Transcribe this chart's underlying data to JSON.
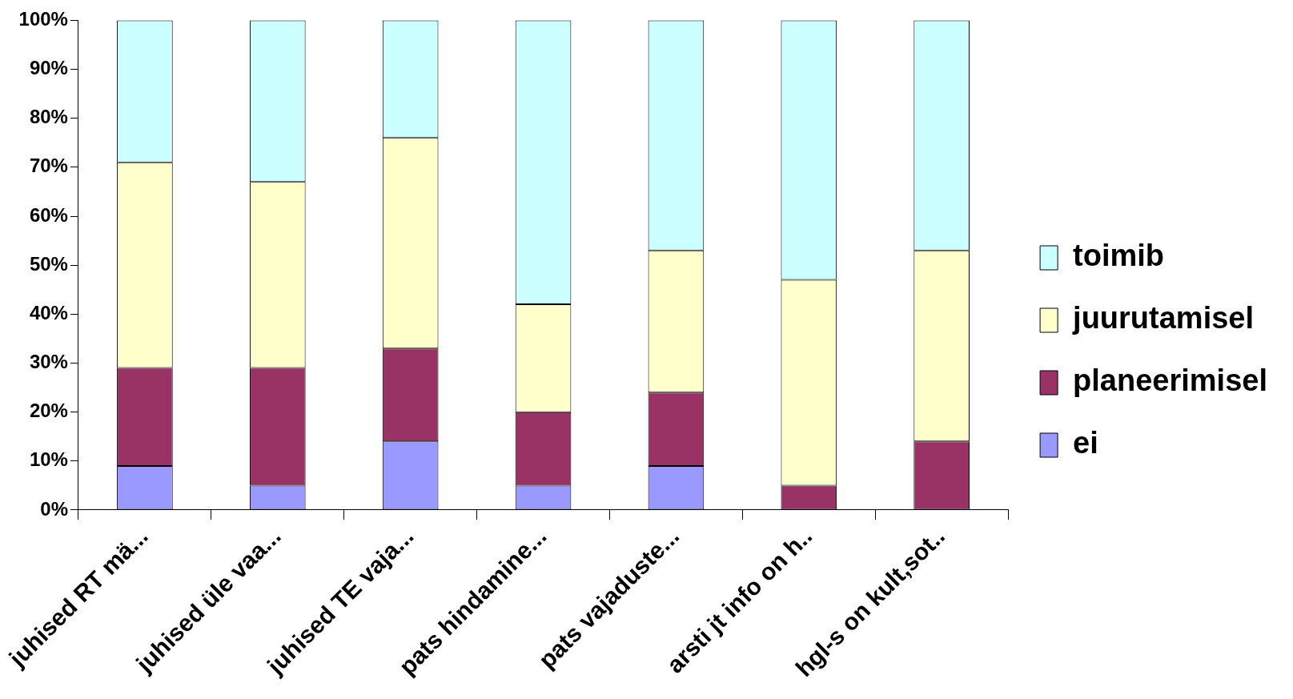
{
  "chart_data": {
    "type": "bar",
    "stacked": true,
    "categories": [
      "juhised RT mä...",
      "juhised üle vaa...",
      "juhised TE vaja...",
      "pats hindamine...",
      "pats vajaduste...",
      "arsti jt info on h..",
      "hgl-s on kult,sot.."
    ],
    "series": [
      {
        "name": "ei",
        "color": "#9999ff",
        "values": [
          9,
          5,
          14,
          5,
          9,
          0,
          0
        ]
      },
      {
        "name": "planeerimisel",
        "color": "#993366",
        "values": [
          20,
          24,
          19,
          15,
          15,
          5,
          14
        ]
      },
      {
        "name": "juurutamisel",
        "color": "#ffffcc",
        "values": [
          42,
          38,
          43,
          22,
          29,
          42,
          39
        ]
      },
      {
        "name": "toimib",
        "color": "#ccffff",
        "values": [
          29,
          33,
          24,
          58,
          47,
          53,
          47
        ]
      }
    ],
    "ylim": [
      0,
      100
    ],
    "yticks": [
      {
        "value": 0,
        "label": "0%"
      },
      {
        "value": 10,
        "label": "10%"
      },
      {
        "value": 20,
        "label": "20%"
      },
      {
        "value": 30,
        "label": "30%"
      },
      {
        "value": 40,
        "label": "40%"
      },
      {
        "value": 50,
        "label": "50%"
      },
      {
        "value": 60,
        "label": "60%"
      },
      {
        "value": 70,
        "label": "70%"
      },
      {
        "value": 80,
        "label": "80%"
      },
      {
        "value": 90,
        "label": "90%"
      },
      {
        "value": 100,
        "label": "100%"
      }
    ],
    "grid": false,
    "legend": "right"
  }
}
